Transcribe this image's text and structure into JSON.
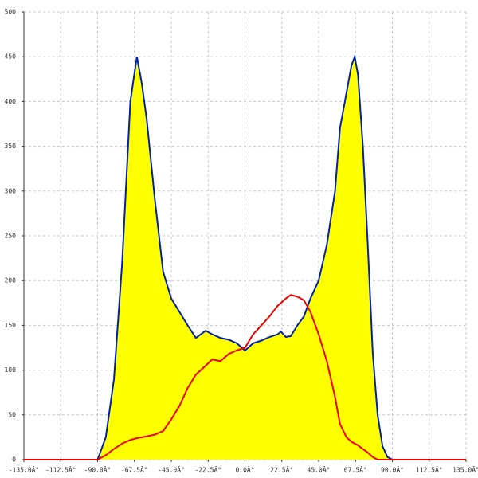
{
  "chart_data": {
    "type": "area",
    "x": [
      -135,
      -90,
      -85,
      -80,
      -75,
      -70,
      -66,
      -63,
      -60,
      -55,
      -50,
      -45,
      -40,
      -35,
      -30,
      -27,
      -24,
      -20,
      -15,
      -10,
      -5,
      0,
      5,
      10,
      15,
      20,
      22,
      25,
      28,
      32,
      36,
      40,
      45,
      50,
      55,
      58,
      62,
      65,
      67,
      69,
      72,
      75,
      78,
      81,
      84,
      87,
      90,
      135
    ],
    "series": [
      {
        "name": "blue",
        "color": "#0022aa",
        "fill": "#ffff00",
        "values": [
          0,
          0,
          25,
          90,
          220,
          400,
          450,
          420,
          380,
          290,
          210,
          180,
          165,
          150,
          136,
          140,
          144,
          140,
          136,
          134,
          130,
          122,
          130,
          133,
          137,
          140,
          143,
          137,
          138,
          150,
          160,
          180,
          200,
          240,
          300,
          370,
          410,
          440,
          450,
          430,
          350,
          240,
          120,
          50,
          15,
          3,
          0,
          0
        ]
      },
      {
        "name": "red",
        "color": "#ee0000",
        "values": [
          0,
          0,
          5,
          12,
          18,
          22,
          24,
          25,
          26,
          28,
          32,
          45,
          60,
          80,
          95,
          100,
          105,
          112,
          110,
          118,
          122,
          125,
          140,
          150,
          160,
          172,
          175,
          180,
          184,
          182,
          178,
          165,
          140,
          110,
          70,
          40,
          25,
          20,
          18,
          16,
          12,
          8,
          3,
          0,
          0,
          0,
          0,
          0
        ]
      }
    ],
    "xlim": [
      -135,
      135
    ],
    "ylim": [
      0,
      500
    ],
    "xticks": [
      {
        "value": -135,
        "label": "-135.0Â°"
      },
      {
        "value": -112.5,
        "label": "-112.5Â°"
      },
      {
        "value": -90,
        "label": "-90.0Â°"
      },
      {
        "value": -67.5,
        "label": "-67.5Â°"
      },
      {
        "value": -45,
        "label": "-45.0Â°"
      },
      {
        "value": -22.5,
        "label": "-22.5Â°"
      },
      {
        "value": 0,
        "label": "0.0Â°"
      },
      {
        "value": 22.5,
        "label": "22.5Â°"
      },
      {
        "value": 45,
        "label": "45.0Â°"
      },
      {
        "value": 67.5,
        "label": "67.5Â°"
      },
      {
        "value": 90,
        "label": "90.0Â°"
      },
      {
        "value": 112.5,
        "label": "112.5Â°"
      },
      {
        "value": 135,
        "label": "135.0Â°"
      }
    ],
    "yticks": [
      0,
      50,
      100,
      150,
      200,
      250,
      300,
      350,
      400,
      450,
      500
    ],
    "grid": true
  }
}
